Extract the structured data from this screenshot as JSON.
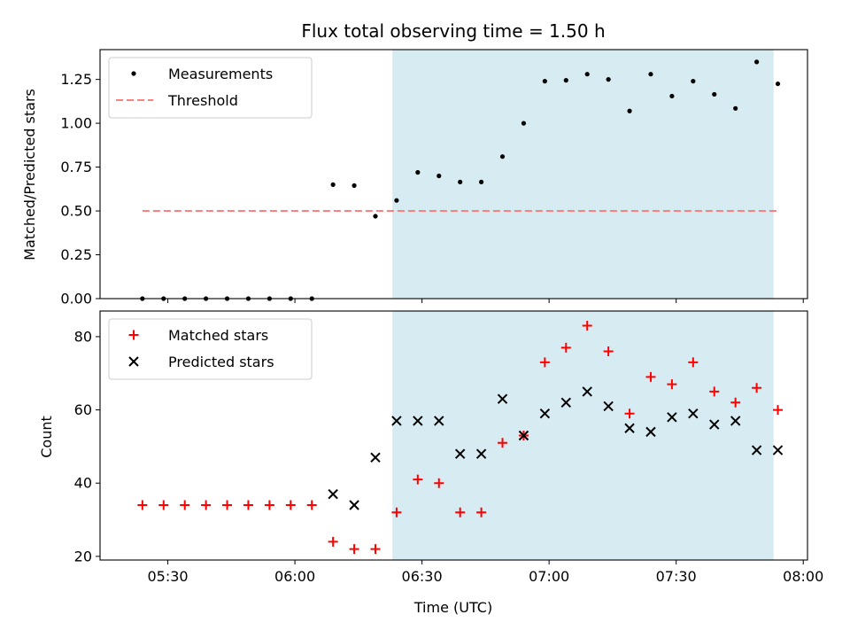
{
  "chart_data": [
    {
      "type": "scatter",
      "title": "Flux total observing time = 1.50 h",
      "xlabel": "",
      "ylabel": "Matched/Predicted stars",
      "ylim": [
        0,
        1.42
      ],
      "yticks": [
        "0.00",
        "0.25",
        "0.50",
        "0.75",
        "1.00",
        "1.25"
      ],
      "x_range": [
        "05:14",
        "08:01"
      ],
      "shaded_interval": [
        "06:23",
        "07:53"
      ],
      "shade_color": "#add8e6",
      "legend": {
        "placement": "top-left",
        "entries": [
          "Measurements",
          "Threshold"
        ]
      },
      "series": [
        {
          "name": "Measurements",
          "marker": "dot",
          "color": "#000000",
          "x": [
            "05:24",
            "05:29",
            "05:34",
            "05:39",
            "05:44",
            "05:49",
            "05:54",
            "05:59",
            "06:04",
            "06:09",
            "06:14",
            "06:19",
            "06:24",
            "06:29",
            "06:34",
            "06:39",
            "06:44",
            "06:49",
            "06:54",
            "06:59",
            "07:04",
            "07:09",
            "07:14",
            "07:19",
            "07:24",
            "07:29",
            "07:34",
            "07:39",
            "07:44",
            "07:49",
            "07:54"
          ],
          "y": [
            0,
            0,
            0,
            0,
            0,
            0,
            0,
            0,
            0,
            0.65,
            0.645,
            0.47,
            0.56,
            0.72,
            0.7,
            0.665,
            0.665,
            0.81,
            1.0,
            1.24,
            1.245,
            1.28,
            1.25,
            1.07,
            1.28,
            1.155,
            1.24,
            1.165,
            1.085,
            1.35,
            1.225
          ]
        },
        {
          "name": "Threshold",
          "style": "dashed",
          "color": "#ff7f7f",
          "x": [
            "05:24",
            "07:54"
          ],
          "y": [
            0.5,
            0.5
          ]
        }
      ]
    },
    {
      "type": "scatter",
      "title": "",
      "xlabel": "Time (UTC)",
      "ylabel": "Count",
      "ylim": [
        19,
        87
      ],
      "yticks": [
        "20",
        "40",
        "60",
        "80"
      ],
      "xticks": [
        "05:30",
        "06:00",
        "06:30",
        "07:00",
        "07:30",
        "08:00"
      ],
      "x_range": [
        "05:14",
        "08:01"
      ],
      "shaded_interval": [
        "06:23",
        "07:53"
      ],
      "shade_color": "#add8e6",
      "legend": {
        "placement": "top-left",
        "entries": [
          "Matched stars",
          "Predicted stars"
        ]
      },
      "series": [
        {
          "name": "Matched stars",
          "marker": "plus",
          "color": "#ff0000",
          "x": [
            "05:24",
            "05:29",
            "05:34",
            "05:39",
            "05:44",
            "05:49",
            "05:54",
            "05:59",
            "06:04",
            "06:09",
            "06:14",
            "06:19",
            "06:24",
            "06:29",
            "06:34",
            "06:39",
            "06:44",
            "06:49",
            "06:54",
            "06:59",
            "07:04",
            "07:09",
            "07:14",
            "07:19",
            "07:24",
            "07:29",
            "07:34",
            "07:39",
            "07:44",
            "07:49",
            "07:54"
          ],
          "y": [
            34,
            34,
            34,
            34,
            34,
            34,
            34,
            34,
            34,
            24,
            22,
            22,
            32,
            41,
            40,
            32,
            32,
            51,
            53,
            73,
            77,
            83,
            76,
            59,
            69,
            67,
            73,
            65,
            62,
            66,
            60
          ]
        },
        {
          "name": "Predicted stars",
          "marker": "x",
          "color": "#000000",
          "x": [
            "06:09",
            "06:14",
            "06:19",
            "06:24",
            "06:29",
            "06:34",
            "06:39",
            "06:44",
            "06:49",
            "06:54",
            "06:59",
            "07:04",
            "07:09",
            "07:14",
            "07:19",
            "07:24",
            "07:29",
            "07:34",
            "07:39",
            "07:44",
            "07:49",
            "07:54"
          ],
          "y": [
            37,
            34,
            47,
            57,
            57,
            57,
            48,
            48,
            63,
            53,
            59,
            62,
            65,
            61,
            55,
            54,
            58,
            59,
            56,
            57,
            49,
            49
          ]
        }
      ]
    }
  ]
}
